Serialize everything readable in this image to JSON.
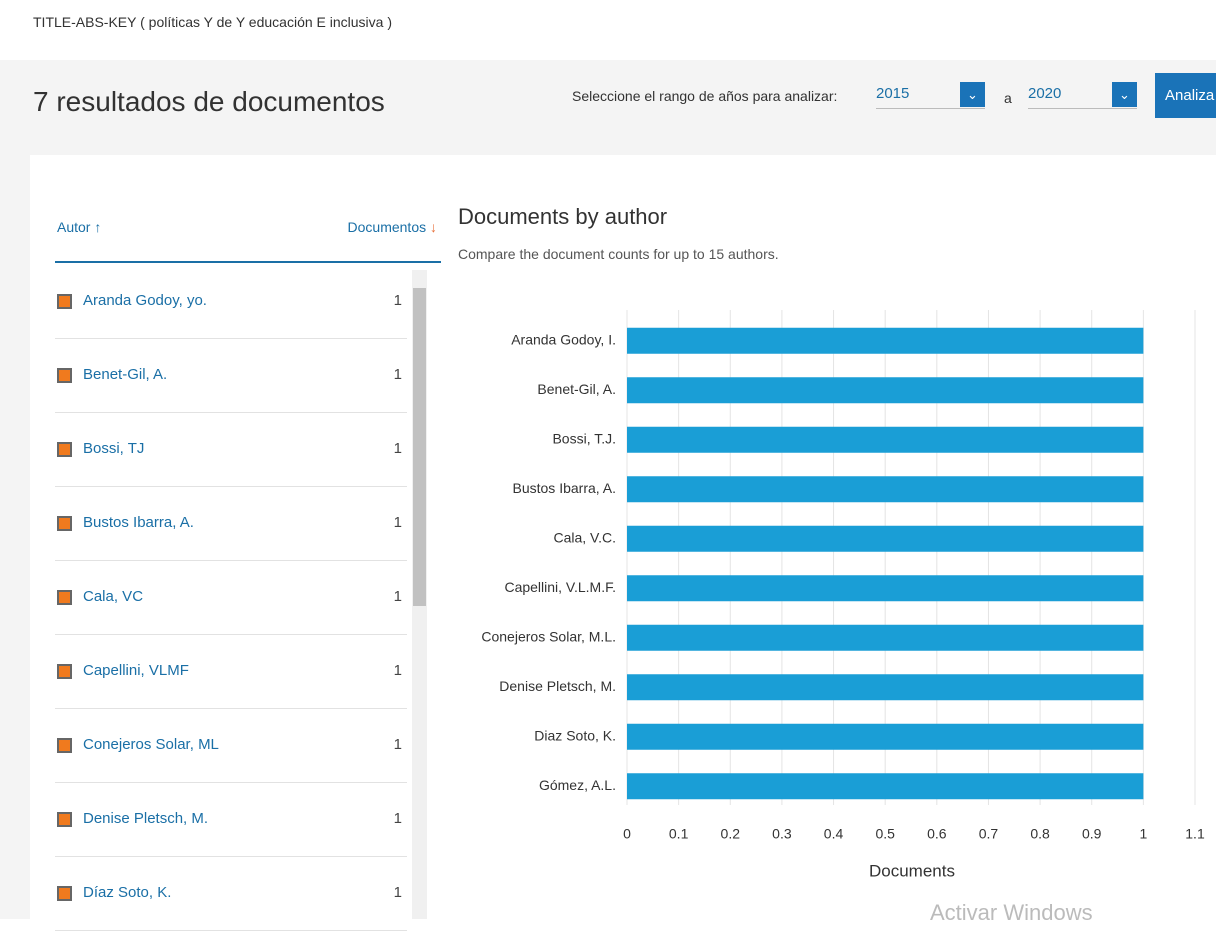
{
  "query": "TITLE-ABS-KEY ( políticas Y de Y educación E inclusiva )",
  "header": {
    "title": "7 resultados de documentos",
    "range_label": "Seleccione el rango de años para analizar:",
    "year_from": 2015,
    "separator": "a",
    "year_to": 2020,
    "button": "Analiza"
  },
  "table": {
    "columns": [
      "Autor",
      "Documentos"
    ],
    "rows": [
      [
        "Aranda Godoy, yo.",
        1
      ],
      [
        "Benet-Gil, A.",
        1
      ],
      [
        "Bossi, TJ",
        1
      ],
      [
        "Bustos Ibarra, A.",
        1
      ],
      [
        "Cala, VC",
        1
      ],
      [
        "Capellini, VLMF",
        1
      ],
      [
        "Conejeros Solar, ML",
        1
      ],
      [
        "Denise Pletsch, M.",
        1
      ],
      [
        "Díaz Soto, K.",
        1
      ]
    ]
  },
  "watermark": "Activar Windows",
  "chart_data": {
    "type": "hbar",
    "title": "Documents by author",
    "subtitle": "Compare the document counts for up to 15 authors.",
    "categories": [
      "Aranda Godoy, I.",
      "Benet-Gil, A.",
      "Bossi, T.J.",
      "Bustos Ibarra, A.",
      "Cala, V.C.",
      "Capellini, V.L.M.F.",
      "Conejeros Solar, M.L.",
      "Denise Pletsch, M.",
      "Diaz Soto, K.",
      "Gómez, A.L."
    ],
    "values": [
      1,
      1,
      1,
      1,
      1,
      1,
      1,
      1,
      1,
      1
    ],
    "color": "#1a9ed6",
    "x_label": "Documents",
    "xlim": [
      0,
      1.1
    ],
    "xticks": [
      0,
      0.1,
      0.2,
      0.3,
      0.4,
      0.5,
      0.6,
      0.7,
      0.8,
      0.9,
      1,
      1.1
    ],
    "grid": true
  }
}
